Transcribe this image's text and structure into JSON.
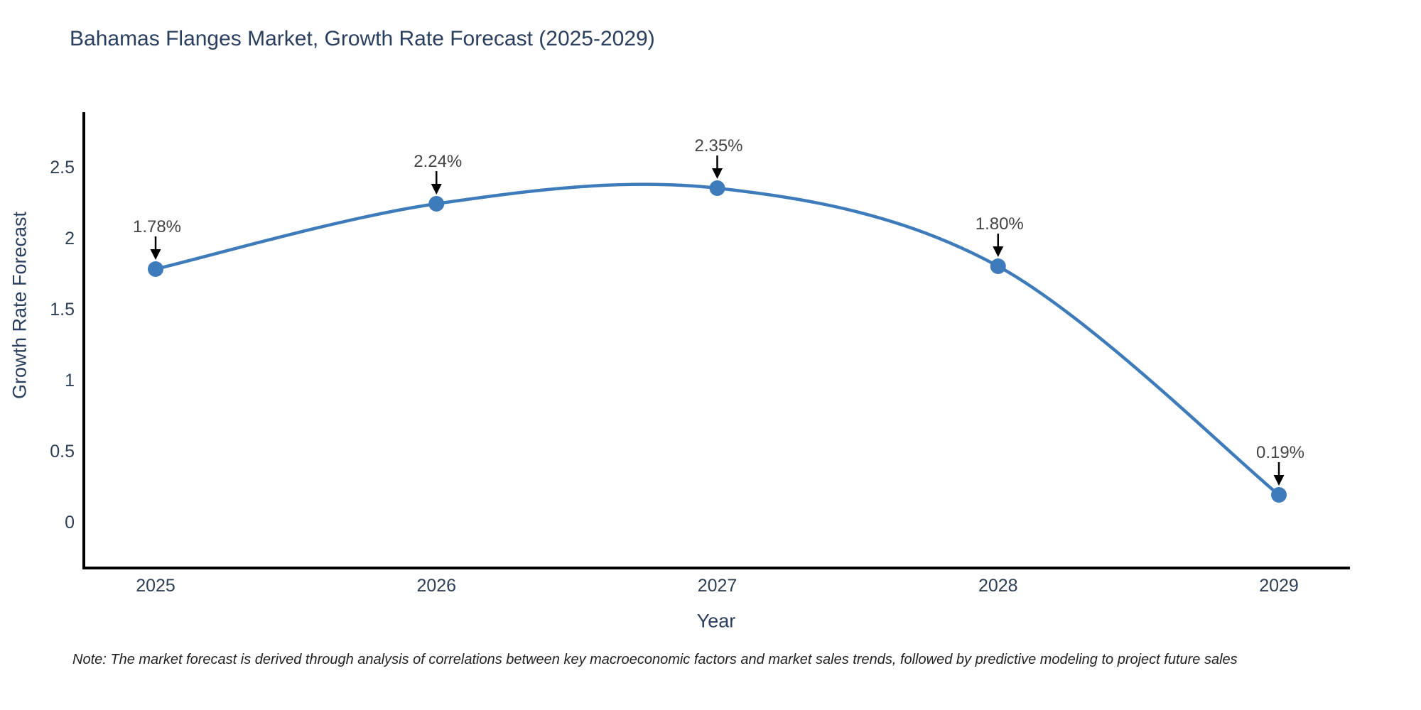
{
  "chart_data": {
    "type": "line",
    "title": "Bahamas Flanges Market, Growth Rate Forecast (2025-2029)",
    "xlabel": "Year",
    "ylabel": "Growth Rate Forecast",
    "categories": [
      "2025",
      "2026",
      "2027",
      "2028",
      "2029"
    ],
    "series": [
      {
        "name": "Growth Rate Forecast",
        "values": [
          1.78,
          2.24,
          2.35,
          1.8,
          0.19
        ],
        "point_labels": [
          "1.78%",
          "2.24%",
          "2.35%",
          "1.80%",
          "0.19%"
        ]
      }
    ],
    "ylim": [
      -0.33,
      2.9
    ],
    "yticks": {
      "values": [
        0,
        0.5,
        1,
        1.5,
        2,
        2.5
      ],
      "labels": [
        "0",
        "0.5",
        "1",
        "1.5",
        "2",
        "2.5"
      ]
    },
    "grid": false,
    "legend_position": "none",
    "line_shape": "spline",
    "colors": {
      "line": "#3e7bba",
      "marker": "#3e7bba",
      "axis_line": "#000000",
      "tick_label": "#2e3f54",
      "title": "#2a3f5f",
      "axis_title": "#2a3f5f",
      "annotation_text": "#444444",
      "annotation_arrow": "#000000",
      "background": "#ffffff"
    }
  },
  "note": {
    "text": "Note: The market forecast is derived through analysis of correlations between key macroeconomic factors and market sales trends, followed by predictive modeling to project future sales"
  }
}
